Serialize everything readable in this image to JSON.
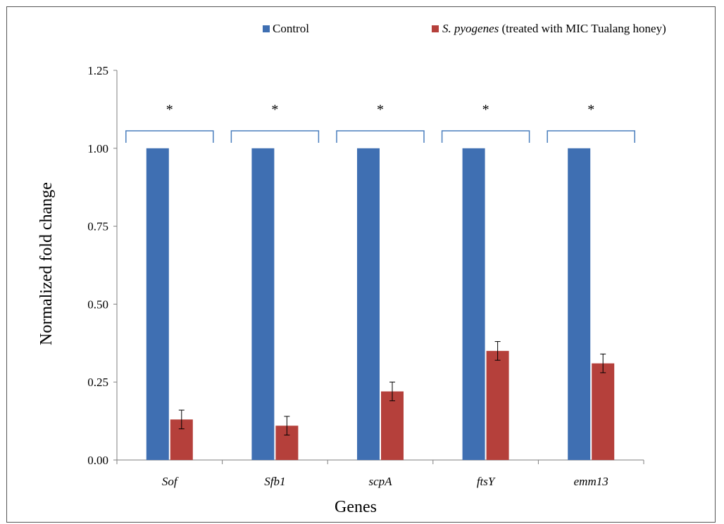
{
  "chart_data": {
    "type": "bar",
    "categories": [
      "Sof",
      "Sfb1",
      "scpA",
      "ftsY",
      "emm13"
    ],
    "series": [
      {
        "name": "Control",
        "values": [
          1.0,
          1.0,
          1.0,
          1.0,
          1.0
        ],
        "color": "#3f6fb2"
      },
      {
        "name": "S. pyogenes (treated with MIC Tualang honey)",
        "name_italic_part": "S. pyogenes",
        "name_rest": " (treated with MIC Tualang honey)",
        "values": [
          0.13,
          0.11,
          0.22,
          0.35,
          0.31
        ],
        "errors": [
          0.03,
          0.03,
          0.03,
          0.03,
          0.03
        ],
        "color": "#b5403b"
      }
    ],
    "significance_marks": [
      "*",
      "*",
      "*",
      "*",
      "*"
    ],
    "xlabel": "Genes",
    "ylabel": "Normalized fold change",
    "ylim": [
      0,
      1.25
    ],
    "yticks": [
      "0.00",
      "0.25",
      "0.50",
      "0.75",
      "1.00",
      "1.25"
    ],
    "grid": false,
    "legend_position": "top"
  }
}
